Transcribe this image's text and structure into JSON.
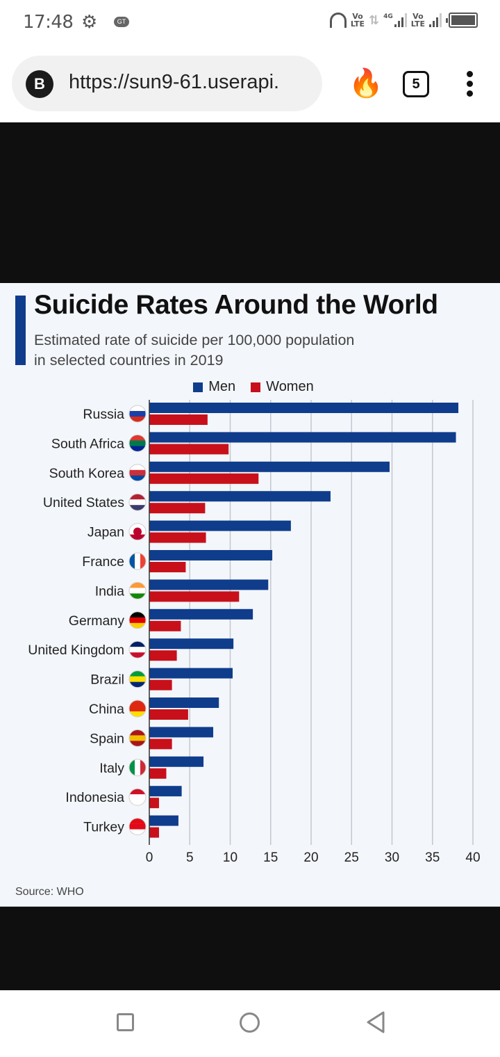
{
  "status_bar": {
    "time": "17:48",
    "left_icons": [
      "gear-icon",
      "vpn-icon"
    ],
    "vpn_label": "GT",
    "right_icons": [
      "headset-icon",
      "volte-icon",
      "data-arrows-icon",
      "signal-4g-icon",
      "volte-icon",
      "signal-icon",
      "battery-icon"
    ],
    "volte_top": "Vo",
    "volte_bottom": "LTE",
    "network_label": "4G",
    "battery_level": 1.0
  },
  "browser": {
    "site_badge": "B",
    "url": "https://sun9-61.userapi.",
    "tab_count": "5",
    "icons": [
      "fire-icon",
      "tab-switcher-icon",
      "overflow-menu-icon"
    ]
  },
  "infographic": {
    "source": "Source: WHO"
  },
  "chart_data": {
    "type": "bar",
    "orientation": "horizontal",
    "title": "Suicide Rates Around the World",
    "subtitle_lines": [
      "Estimated rate of suicide per 100,000 population",
      "in selected countries in 2019"
    ],
    "xlabel": "",
    "ylabel": "",
    "xlim": [
      0,
      40
    ],
    "xticks": [
      0,
      5,
      10,
      15,
      20,
      25,
      30,
      35,
      40
    ],
    "grid": true,
    "legend_position": "top-center",
    "categories": [
      "Russia",
      "South Africa",
      "South Korea",
      "United States",
      "Japan",
      "France",
      "India",
      "Germany",
      "United Kingdom",
      "Brazil",
      "China",
      "Spain",
      "Italy",
      "Indonesia",
      "Turkey"
    ],
    "flags": [
      "russia-flag-icon",
      "south-africa-flag-icon",
      "south-korea-flag-icon",
      "united-states-flag-icon",
      "japan-flag-icon",
      "france-flag-icon",
      "india-flag-icon",
      "germany-flag-icon",
      "united-kingdom-flag-icon",
      "brazil-flag-icon",
      "china-flag-icon",
      "spain-flag-icon",
      "italy-flag-icon",
      "indonesia-flag-icon",
      "turkey-flag-icon"
    ],
    "series": [
      {
        "name": "Men",
        "color": "#0f3d8c",
        "values": [
          38.2,
          37.9,
          29.7,
          22.4,
          17.5,
          15.2,
          14.7,
          12.8,
          10.4,
          10.3,
          8.6,
          7.9,
          6.7,
          4.0,
          3.6
        ]
      },
      {
        "name": "Women",
        "color": "#c8101b",
        "values": [
          7.2,
          9.8,
          13.5,
          6.9,
          7.0,
          4.5,
          11.1,
          3.9,
          3.4,
          2.8,
          4.8,
          2.8,
          2.1,
          1.2,
          1.2
        ]
      }
    ]
  },
  "nav_bar": {
    "buttons": [
      "recents-button",
      "home-button",
      "back-button"
    ]
  }
}
